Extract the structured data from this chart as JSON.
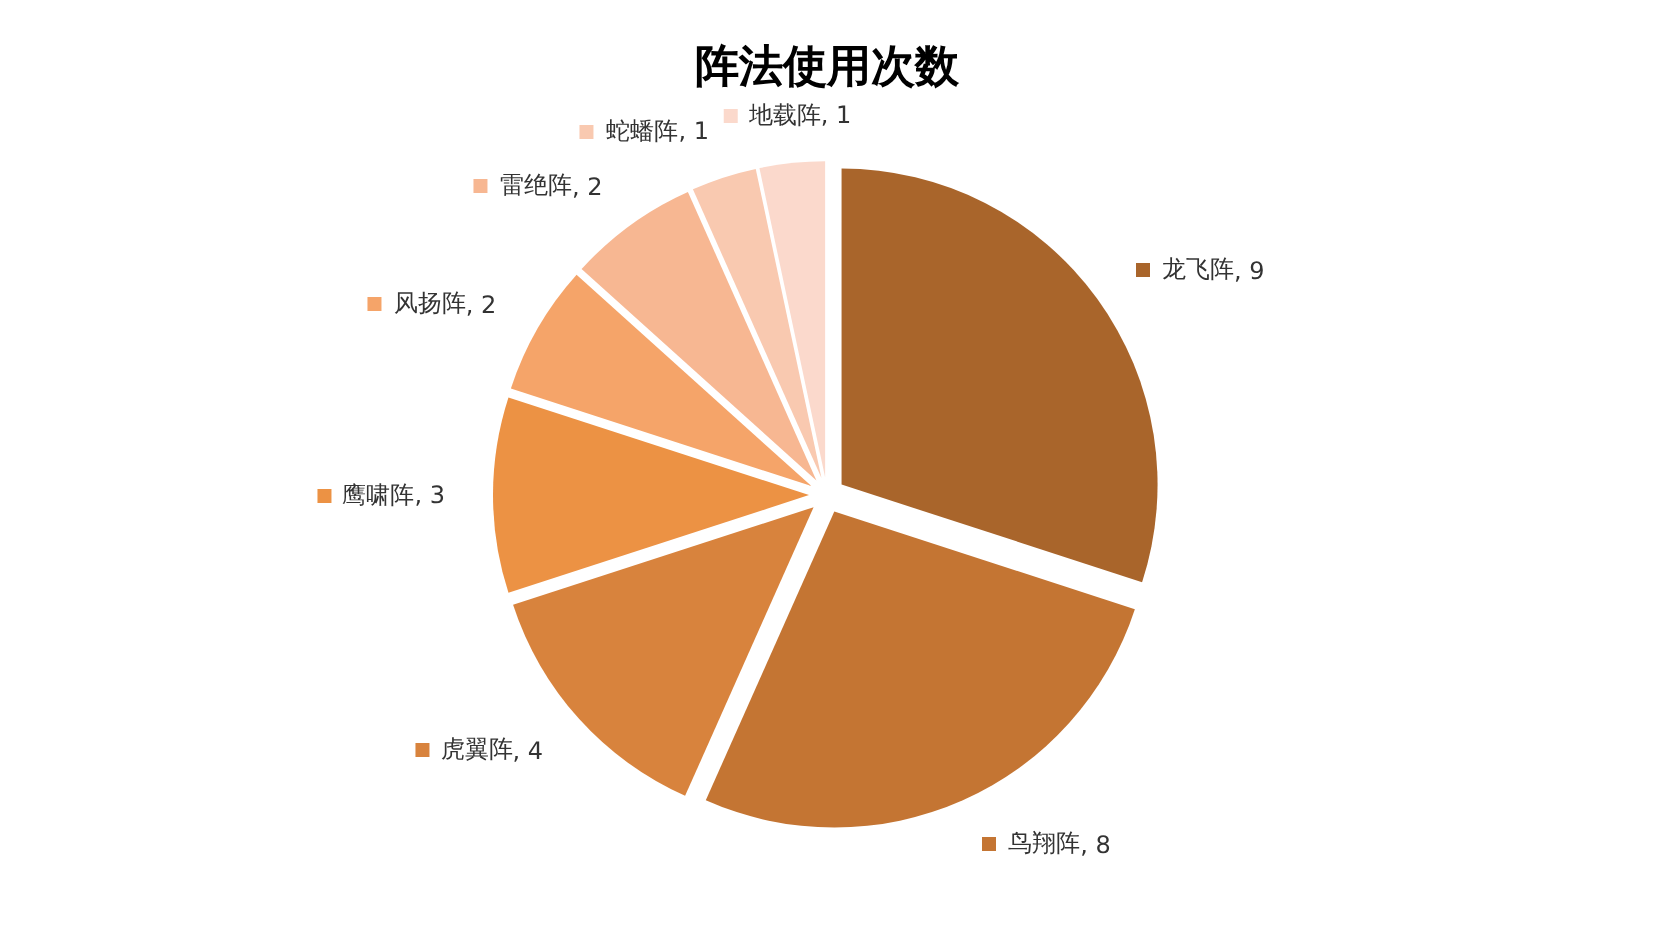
{
  "chart_data": {
    "type": "pie",
    "title": "阵法使用次数",
    "categories": [
      "龙飞阵",
      "鸟翔阵",
      "虎翼阵",
      "鹰啸阵",
      "风扬阵",
      "雷绝阵",
      "蛇蟠阵",
      "地载阵"
    ],
    "values": [
      9,
      8,
      4,
      3,
      2,
      2,
      1,
      1
    ],
    "colors": [
      "#a9652b",
      "#c47533",
      "#d8833d",
      "#ec9244",
      "#f5a469",
      "#f7b792",
      "#f9c9b0",
      "#fbd9cc"
    ],
    "value_labels": [
      ", 9",
      ", 8",
      ", 4",
      ", 3",
      ", 2",
      ", 2",
      ", 1",
      ", 1"
    ],
    "legend": "top left"
  }
}
